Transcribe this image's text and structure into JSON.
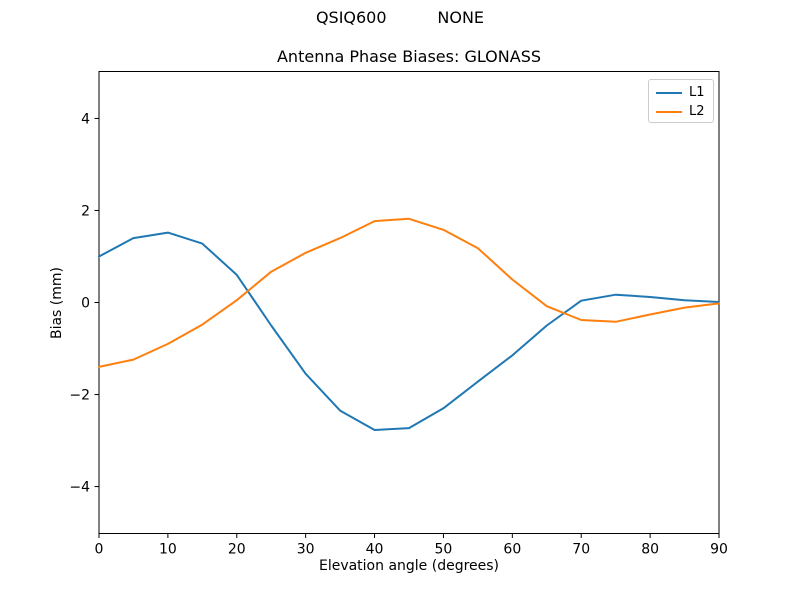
{
  "figure": {
    "suptitle": "QSIQ600          NONE",
    "background": "#ffffff"
  },
  "chart_data": {
    "type": "line",
    "title": "Antenna Phase Biases: GLONASS",
    "xlabel": "Elevation angle (degrees)",
    "ylabel": "Bias (mm)",
    "xlim": [
      0,
      90
    ],
    "ylim": [
      -5.02,
      5.02
    ],
    "xticks": [
      0,
      10,
      20,
      30,
      40,
      50,
      60,
      70,
      80,
      90
    ],
    "yticks": [
      -4,
      -2,
      0,
      2,
      4
    ],
    "grid": false,
    "legend_position": "upper right",
    "x": [
      0,
      5,
      10,
      15,
      20,
      25,
      30,
      35,
      40,
      45,
      50,
      55,
      60,
      65,
      70,
      75,
      80,
      85,
      90
    ],
    "series": [
      {
        "name": "L1",
        "color": "#1f77b4",
        "values": [
          1.0,
          1.4,
          1.52,
          1.28,
          0.6,
          -0.5,
          -1.55,
          -2.35,
          -2.77,
          -2.73,
          -2.3,
          -1.72,
          -1.15,
          -0.5,
          0.04,
          0.17,
          0.12,
          0.05,
          0.01
        ]
      },
      {
        "name": "L2",
        "color": "#ff7f0e",
        "values": [
          -1.4,
          -1.24,
          -0.9,
          -0.48,
          0.05,
          0.67,
          1.08,
          1.4,
          1.77,
          1.82,
          1.58,
          1.18,
          0.5,
          -0.08,
          -0.38,
          -0.42,
          -0.26,
          -0.11,
          -0.02
        ]
      }
    ],
    "axis_color": "#000000"
  }
}
